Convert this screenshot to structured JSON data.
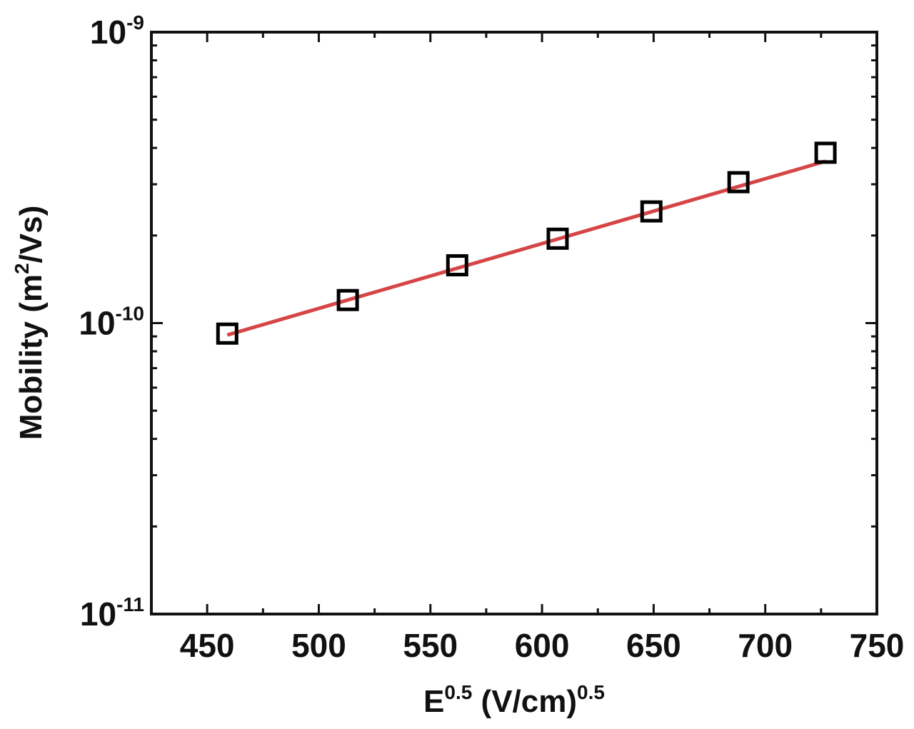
{
  "chart_data": {
    "type": "scatter",
    "title": "",
    "xlabel": {
      "base": "E",
      "sup": "0.5",
      "rest": " (V/cm)",
      "sup2": "0.5"
    },
    "ylabel": {
      "base": "Mobility (m",
      "sup": "2",
      "rest": "/Vs)"
    },
    "xlim": [
      425,
      750
    ],
    "ylim": [
      1e-11,
      1e-09
    ],
    "yscale": "log",
    "grid": false,
    "xticks": [
      {
        "value": 450,
        "label": "450"
      },
      {
        "value": 500,
        "label": "500"
      },
      {
        "value": 550,
        "label": "550"
      },
      {
        "value": 600,
        "label": "600"
      },
      {
        "value": 650,
        "label": "650"
      },
      {
        "value": 700,
        "label": "700"
      },
      {
        "value": 750,
        "label": "750"
      }
    ],
    "yticks": [
      {
        "value": 1e-11,
        "base": "10",
        "exp": "-11"
      },
      {
        "value": 1e-10,
        "base": "10",
        "exp": "-10"
      },
      {
        "value": 1e-09,
        "base": "10",
        "exp": "-9"
      }
    ],
    "series": [
      {
        "kind": "points",
        "marker": "open-square",
        "color": "#000000",
        "x": [
          459,
          513,
          562,
          607,
          649,
          688,
          727
        ],
        "y": [
          9.2e-11,
          1.2e-10,
          1.58e-10,
          1.95e-10,
          2.42e-10,
          3.05e-10,
          3.85e-10
        ]
      },
      {
        "kind": "fit-line",
        "color": "#d64545",
        "x": [
          459,
          727
        ],
        "y": [
          9.1e-11,
          3.6e-10
        ]
      }
    ]
  }
}
